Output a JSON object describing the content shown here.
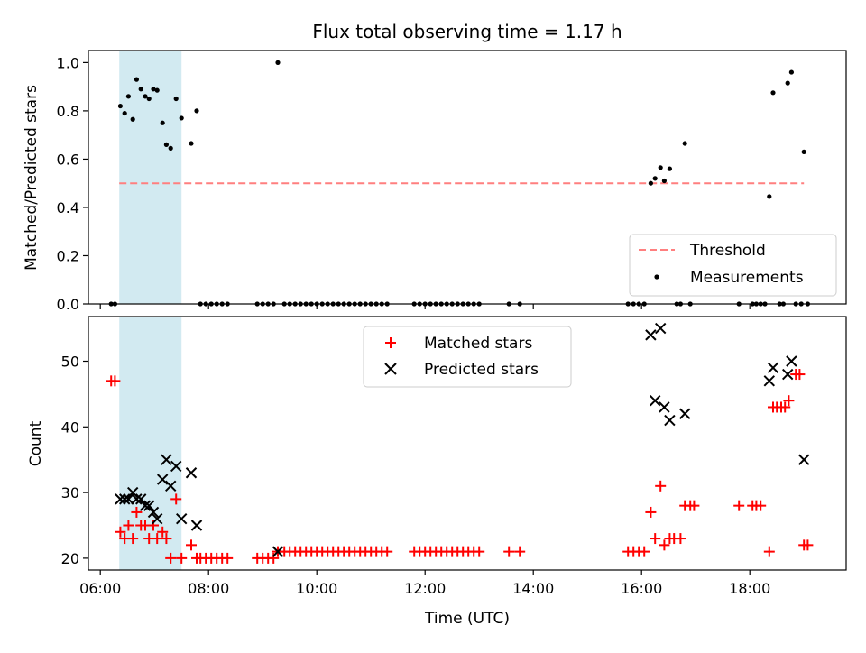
{
  "title": "Flux total observing time = 1.17 h",
  "x_axis": {
    "label": "Time (UTC)",
    "unit": "hours UTC",
    "range": [
      5.78,
      19.78
    ],
    "ticks": [
      6,
      8,
      10,
      12,
      14,
      16,
      18
    ],
    "tick_labels": [
      "06:00",
      "08:00",
      "10:00",
      "12:00",
      "14:00",
      "16:00",
      "18:00"
    ]
  },
  "highlight": {
    "x_start": 6.35,
    "x_end": 7.5,
    "color": "#add8e6"
  },
  "top_panel": {
    "ylabel": "Matched/Predicted stars",
    "ylim": [
      0,
      1.05
    ],
    "yticks": [
      0,
      0.2,
      0.4,
      0.6,
      0.8,
      1.0
    ],
    "ytick_labels": [
      "0.0",
      "0.2",
      "0.4",
      "0.6",
      "0.8",
      "1.0"
    ],
    "legend": [
      {
        "label": "Threshold",
        "marker": "dashed-line",
        "color": "#ff7f7f"
      },
      {
        "label": "Measurements",
        "marker": "dot",
        "color": "#000000"
      }
    ]
  },
  "bottom_panel": {
    "ylabel": "Count",
    "ylim": [
      18.2,
      56.8
    ],
    "yticks": [
      20,
      30,
      40,
      50
    ],
    "ytick_labels": [
      "20",
      "30",
      "40",
      "50"
    ],
    "legend": [
      {
        "label": "Matched stars",
        "marker": "plus",
        "color": "#ff0000"
      },
      {
        "label": "Predicted stars",
        "marker": "x",
        "color": "#000000"
      }
    ]
  },
  "chart_data": [
    {
      "type": "scatter",
      "panel": "top",
      "ylabel": "Matched/Predicted stars",
      "ylim": [
        0,
        1.05
      ],
      "threshold": {
        "name": "Threshold",
        "y": 0.5,
        "x_range": [
          6.35,
          19.0
        ],
        "style": "dashed",
        "color": "#ff7f7f"
      },
      "series": [
        {
          "name": "Measurements",
          "color": "#000000",
          "points": [
            [
              6.2,
              0
            ],
            [
              6.27,
              0
            ],
            [
              6.37,
              0.82
            ],
            [
              6.45,
              0.79
            ],
            [
              6.52,
              0.86
            ],
            [
              6.6,
              0.765
            ],
            [
              6.67,
              0.93
            ],
            [
              6.75,
              0.89
            ],
            [
              6.83,
              0.86
            ],
            [
              6.9,
              0.85
            ],
            [
              6.98,
              0.89
            ],
            [
              7.05,
              0.885
            ],
            [
              7.15,
              0.75
            ],
            [
              7.22,
              0.66
            ],
            [
              7.3,
              0.645
            ],
            [
              7.4,
              0.85
            ],
            [
              7.5,
              0.77
            ],
            [
              7.68,
              0.665
            ],
            [
              7.78,
              0.8
            ],
            [
              7.85,
              0
            ],
            [
              7.95,
              0
            ],
            [
              8.05,
              0
            ],
            [
              8.15,
              0
            ],
            [
              8.25,
              0
            ],
            [
              8.35,
              0
            ],
            [
              8.9,
              0
            ],
            [
              9.0,
              0
            ],
            [
              9.1,
              0
            ],
            [
              9.2,
              0
            ],
            [
              9.28,
              1.0
            ],
            [
              9.4,
              0
            ],
            [
              9.5,
              0
            ],
            [
              9.6,
              0
            ],
            [
              9.7,
              0
            ],
            [
              9.8,
              0
            ],
            [
              9.9,
              0
            ],
            [
              10.0,
              0
            ],
            [
              10.1,
              0
            ],
            [
              10.2,
              0
            ],
            [
              10.3,
              0
            ],
            [
              10.4,
              0
            ],
            [
              10.5,
              0
            ],
            [
              10.6,
              0
            ],
            [
              10.7,
              0
            ],
            [
              10.8,
              0
            ],
            [
              10.9,
              0
            ],
            [
              11.0,
              0
            ],
            [
              11.1,
              0
            ],
            [
              11.2,
              0
            ],
            [
              11.3,
              0
            ],
            [
              11.8,
              0
            ],
            [
              11.9,
              0
            ],
            [
              12.0,
              0
            ],
            [
              12.1,
              0
            ],
            [
              12.2,
              0
            ],
            [
              12.3,
              0
            ],
            [
              12.4,
              0
            ],
            [
              12.5,
              0
            ],
            [
              12.6,
              0
            ],
            [
              12.7,
              0
            ],
            [
              12.8,
              0
            ],
            [
              12.9,
              0
            ],
            [
              13.0,
              0
            ],
            [
              13.55,
              0
            ],
            [
              13.75,
              0
            ],
            [
              15.75,
              0
            ],
            [
              15.85,
              0
            ],
            [
              15.95,
              0
            ],
            [
              16.05,
              0
            ],
            [
              16.17,
              0.5
            ],
            [
              16.25,
              0.52
            ],
            [
              16.35,
              0.565
            ],
            [
              16.42,
              0.51
            ],
            [
              16.52,
              0.56
            ],
            [
              16.65,
              0
            ],
            [
              16.72,
              0
            ],
            [
              16.8,
              0.665
            ],
            [
              16.9,
              0
            ],
            [
              17.8,
              0
            ],
            [
              18.05,
              0
            ],
            [
              18.12,
              0
            ],
            [
              18.2,
              0
            ],
            [
              18.28,
              0
            ],
            [
              18.36,
              0.445
            ],
            [
              18.43,
              0.875
            ],
            [
              18.55,
              0
            ],
            [
              18.62,
              0
            ],
            [
              18.7,
              0.915
            ],
            [
              18.77,
              0.96
            ],
            [
              18.85,
              0
            ],
            [
              18.95,
              0
            ],
            [
              19.0,
              0.63
            ],
            [
              19.07,
              0
            ]
          ]
        }
      ]
    },
    {
      "type": "scatter",
      "panel": "bottom",
      "ylabel": "Count",
      "xlabel": "Time (UTC)",
      "ylim": [
        18.2,
        56.8
      ],
      "series": [
        {
          "name": "Matched stars",
          "marker": "+",
          "color": "#ff0000",
          "points": [
            [
              6.2,
              47
            ],
            [
              6.27,
              47
            ],
            [
              6.37,
              24
            ],
            [
              6.45,
              23
            ],
            [
              6.52,
              25
            ],
            [
              6.6,
              23
            ],
            [
              6.67,
              27
            ],
            [
              6.75,
              25
            ],
            [
              6.83,
              25
            ],
            [
              6.9,
              23
            ],
            [
              6.98,
              25
            ],
            [
              7.05,
              23
            ],
            [
              7.15,
              24
            ],
            [
              7.22,
              23
            ],
            [
              7.3,
              20
            ],
            [
              7.4,
              29
            ],
            [
              7.5,
              20
            ],
            [
              7.68,
              22
            ],
            [
              7.78,
              20
            ],
            [
              7.85,
              20
            ],
            [
              7.95,
              20
            ],
            [
              8.05,
              20
            ],
            [
              8.15,
              20
            ],
            [
              8.25,
              20
            ],
            [
              8.35,
              20
            ],
            [
              8.9,
              20
            ],
            [
              9.0,
              20
            ],
            [
              9.1,
              20
            ],
            [
              9.2,
              20
            ],
            [
              9.28,
              21
            ],
            [
              9.4,
              21
            ],
            [
              9.5,
              21
            ],
            [
              9.6,
              21
            ],
            [
              9.7,
              21
            ],
            [
              9.8,
              21
            ],
            [
              9.9,
              21
            ],
            [
              10.0,
              21
            ],
            [
              10.1,
              21
            ],
            [
              10.2,
              21
            ],
            [
              10.3,
              21
            ],
            [
              10.4,
              21
            ],
            [
              10.5,
              21
            ],
            [
              10.6,
              21
            ],
            [
              10.7,
              21
            ],
            [
              10.8,
              21
            ],
            [
              10.9,
              21
            ],
            [
              11.0,
              21
            ],
            [
              11.1,
              21
            ],
            [
              11.2,
              21
            ],
            [
              11.3,
              21
            ],
            [
              11.8,
              21
            ],
            [
              11.9,
              21
            ],
            [
              12.0,
              21
            ],
            [
              12.1,
              21
            ],
            [
              12.2,
              21
            ],
            [
              12.3,
              21
            ],
            [
              12.4,
              21
            ],
            [
              12.5,
              21
            ],
            [
              12.6,
              21
            ],
            [
              12.7,
              21
            ],
            [
              12.8,
              21
            ],
            [
              12.9,
              21
            ],
            [
              13.0,
              21
            ],
            [
              13.55,
              21
            ],
            [
              13.75,
              21
            ],
            [
              15.75,
              21
            ],
            [
              15.85,
              21
            ],
            [
              15.95,
              21
            ],
            [
              16.05,
              21
            ],
            [
              16.17,
              27
            ],
            [
              16.25,
              23
            ],
            [
              16.35,
              31
            ],
            [
              16.42,
              22
            ],
            [
              16.52,
              23
            ],
            [
              16.6,
              23
            ],
            [
              16.72,
              23
            ],
            [
              16.8,
              28
            ],
            [
              16.9,
              28
            ],
            [
              16.97,
              28
            ],
            [
              17.8,
              28
            ],
            [
              18.05,
              28
            ],
            [
              18.12,
              28
            ],
            [
              18.2,
              28
            ],
            [
              18.36,
              21
            ],
            [
              18.43,
              43
            ],
            [
              18.5,
              43
            ],
            [
              18.58,
              43
            ],
            [
              18.65,
              43
            ],
            [
              18.72,
              44
            ],
            [
              18.85,
              48
            ],
            [
              18.92,
              48
            ],
            [
              19.0,
              22
            ],
            [
              19.07,
              22
            ]
          ]
        },
        {
          "name": "Predicted stars",
          "marker": "x",
          "color": "#000000",
          "points": [
            [
              6.37,
              29
            ],
            [
              6.45,
              29
            ],
            [
              6.52,
              29
            ],
            [
              6.6,
              30
            ],
            [
              6.67,
              29
            ],
            [
              6.75,
              29
            ],
            [
              6.83,
              28
            ],
            [
              6.9,
              28
            ],
            [
              6.98,
              27
            ],
            [
              7.05,
              26
            ],
            [
              7.15,
              32
            ],
            [
              7.22,
              35
            ],
            [
              7.3,
              31
            ],
            [
              7.4,
              34
            ],
            [
              7.5,
              26
            ],
            [
              7.68,
              33
            ],
            [
              7.78,
              25
            ],
            [
              9.28,
              21
            ],
            [
              16.17,
              54
            ],
            [
              16.25,
              44
            ],
            [
              16.35,
              55
            ],
            [
              16.42,
              43
            ],
            [
              16.52,
              41
            ],
            [
              16.8,
              42
            ],
            [
              18.36,
              47
            ],
            [
              18.43,
              49
            ],
            [
              18.7,
              48
            ],
            [
              18.77,
              50
            ],
            [
              19.0,
              35
            ]
          ]
        }
      ]
    }
  ]
}
